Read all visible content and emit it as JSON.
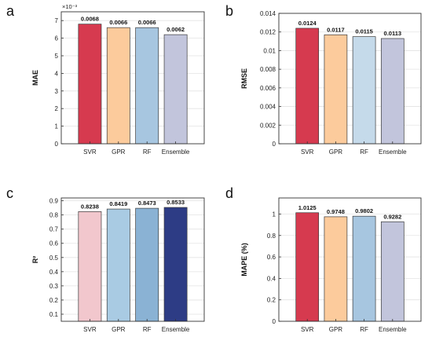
{
  "chart_data": [
    {
      "panel_label": "a",
      "type": "bar",
      "categories": [
        "SVR",
        "GPR",
        "RF",
        "Ensemble"
      ],
      "values": [
        0.0068,
        0.0066,
        0.0066,
        0.0062
      ],
      "data_labels": [
        "0.0068",
        "0.0066",
        "0.0066",
        "0.0062"
      ],
      "colors": [
        "#d63a4f",
        "#fccb9c",
        "#a7c6e0",
        "#c2c5dc"
      ],
      "ylabel": "MAE",
      "ylim": [
        0,
        0.0075
      ],
      "yticks": [
        0,
        0.001,
        0.002,
        0.003,
        0.004,
        0.005,
        0.006,
        0.007
      ],
      "ytick_labels": [
        "0",
        "1",
        "2",
        "3",
        "4",
        "5",
        "6",
        "7"
      ],
      "exponent_label": "×10⁻³",
      "grid": true
    },
    {
      "panel_label": "b",
      "type": "bar",
      "categories": [
        "SVR",
        "GPR",
        "RF",
        "Ensemble"
      ],
      "values": [
        0.0124,
        0.0117,
        0.0115,
        0.0113
      ],
      "data_labels": [
        "0.0124",
        "0.0117",
        "0.0115",
        "0.0113"
      ],
      "colors": [
        "#d63a4f",
        "#fccb9c",
        "#c5daea",
        "#c2c5dc"
      ],
      "ylabel": "RMSE",
      "ylim": [
        0,
        0.014
      ],
      "yticks": [
        0,
        0.002,
        0.004,
        0.006,
        0.008,
        0.01,
        0.012,
        0.014
      ],
      "ytick_labels": [
        "0",
        "0.002",
        "0.004",
        "0.006",
        "0.008",
        "0.01",
        "0.012",
        "0.014"
      ],
      "grid": true
    },
    {
      "panel_label": "c",
      "type": "bar",
      "categories": [
        "SVR",
        "GPR",
        "RF",
        "Ensemble"
      ],
      "values": [
        0.8238,
        0.8419,
        0.8473,
        0.8533
      ],
      "data_labels": [
        "0.8238",
        "0.8419",
        "0.8473",
        "0.8533"
      ],
      "colors": [
        "#f2c7cd",
        "#a9cbe3",
        "#8ab2d4",
        "#2d3c85"
      ],
      "ylabel": "R²",
      "ylim": [
        0.05,
        0.92
      ],
      "yticks": [
        0.1,
        0.2,
        0.3,
        0.4,
        0.5,
        0.6,
        0.7,
        0.8,
        0.9
      ],
      "ytick_labels": [
        "0.1",
        "0.2",
        "0.3",
        "0.4",
        "0.5",
        "0.6",
        "0.7",
        "0.8",
        "0.9"
      ],
      "grid": true
    },
    {
      "panel_label": "d",
      "type": "bar",
      "categories": [
        "SVR",
        "GPR",
        "RF",
        "Ensemble"
      ],
      "values": [
        1.0125,
        0.9748,
        0.9802,
        0.9282
      ],
      "data_labels": [
        "1.0125",
        "0.9748",
        "0.9802",
        "0.9282"
      ],
      "colors": [
        "#d63a4f",
        "#fccb9c",
        "#a7c6e0",
        "#c2c5dc"
      ],
      "ylabel": "MAPE (%)",
      "ylim": [
        0,
        1.15
      ],
      "yticks": [
        0,
        0.2,
        0.4,
        0.6,
        0.8,
        1
      ],
      "ytick_labels": [
        "0",
        "0.2",
        "0.4",
        "0.6",
        "0.8",
        "1"
      ],
      "grid": true
    }
  ]
}
